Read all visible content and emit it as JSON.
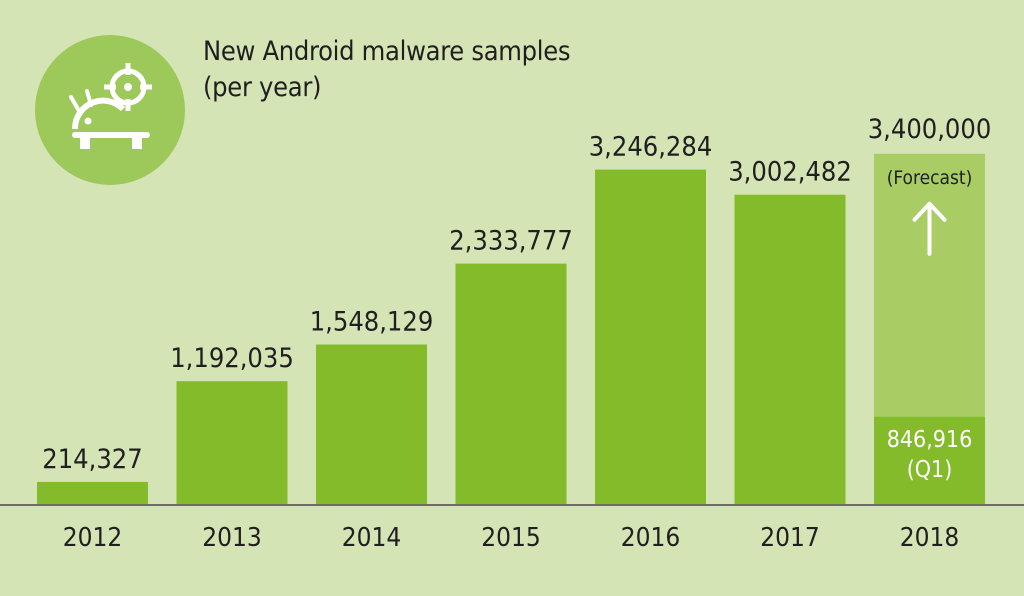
{
  "title_line1": "New Android malware samples",
  "title_line2": "(per year)",
  "icon": "android-target-icon",
  "colors": {
    "background": "#d5e4b4",
    "bar": "#84bb2b",
    "forecast_bar": "#a9cc64",
    "icon_circle": "#9dc85a",
    "text": "#1f1f1f",
    "baseline": "#4a4a4a"
  },
  "chart_data": {
    "type": "bar",
    "categories": [
      "2012",
      "2013",
      "2014",
      "2015",
      "2016",
      "2017",
      "2018"
    ],
    "values": [
      214327,
      1192035,
      1548129,
      2333777,
      3246284,
      3002482,
      846916
    ],
    "value_labels": [
      "214,327",
      "1,192,035",
      "1,548,129",
      "2,333,777",
      "3,246,284",
      "3,002,482",
      "846,916"
    ],
    "q1_note": "(Q1)",
    "forecast": {
      "category": "2018",
      "value": 3400000,
      "value_label": "3,400,000",
      "note": "(Forecast)"
    },
    "title": "New Android malware samples (per year)",
    "xlabel": "",
    "ylabel": "",
    "ylim": [
      0,
      3600000
    ],
    "grid": false,
    "legend": "none"
  }
}
